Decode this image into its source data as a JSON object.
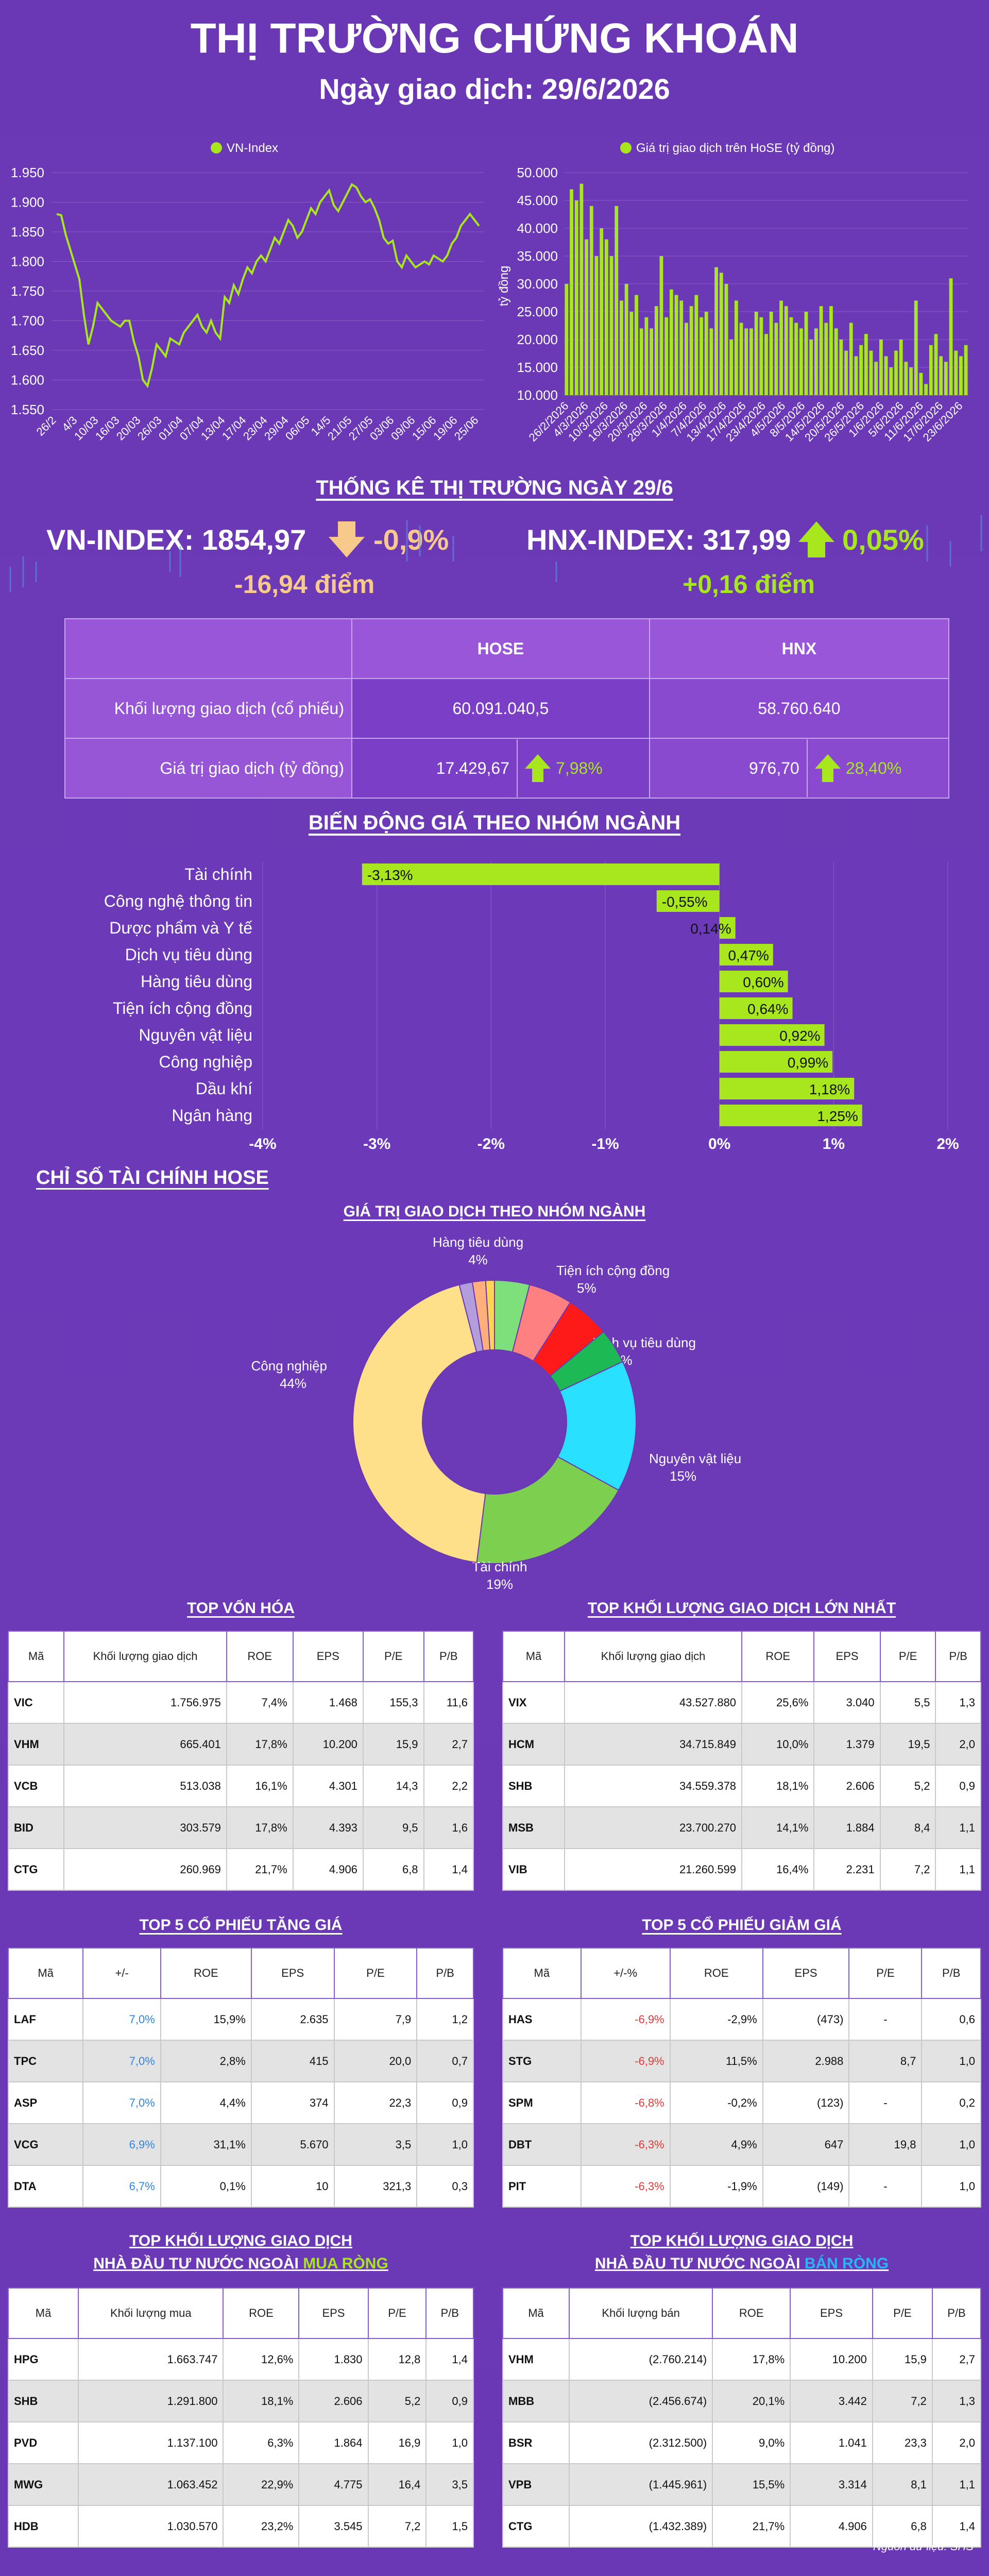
{
  "header": {
    "title": "THỊ TRƯỜNG CHỨNG KHOÁN",
    "subtitle": "Ngày giao dịch: 29/6/2026"
  },
  "colors": {
    "accent_green": "#a8e61d",
    "orange": "#f7c98a",
    "red": "#e53935",
    "blue": "#2e86e6"
  },
  "chart_data": [
    {
      "type": "line",
      "legend": "VN-Index",
      "ylim": [
        1550,
        1950
      ],
      "yticks": [
        "1.550",
        "1.600",
        "1.650",
        "1.700",
        "1.750",
        "1.800",
        "1.850",
        "1.900",
        "1.950"
      ],
      "xtick_labels": [
        "26/2",
        "4/3",
        "10/03",
        "16/03",
        "20/03",
        "26/03",
        "01/04",
        "07/04",
        "13/04",
        "17/04",
        "23/04",
        "29/04",
        "06/05",
        "14/5",
        "21/05",
        "27/05",
        "03/06",
        "09/06",
        "15/06",
        "19/06",
        "25/06"
      ],
      "values": [
        1880,
        1878,
        1845,
        1820,
        1795,
        1770,
        1710,
        1660,
        1690,
        1730,
        1720,
        1710,
        1700,
        1695,
        1690,
        1700,
        1700,
        1665,
        1640,
        1600,
        1590,
        1620,
        1660,
        1650,
        1640,
        1670,
        1665,
        1660,
        1680,
        1690,
        1700,
        1710,
        1690,
        1680,
        1700,
        1680,
        1670,
        1740,
        1730,
        1760,
        1745,
        1770,
        1790,
        1780,
        1800,
        1810,
        1800,
        1820,
        1840,
        1830,
        1850,
        1870,
        1860,
        1840,
        1850,
        1870,
        1890,
        1880,
        1900,
        1910,
        1920,
        1895,
        1885,
        1900,
        1915,
        1930,
        1925,
        1910,
        1900,
        1905,
        1890,
        1870,
        1840,
        1830,
        1835,
        1800,
        1790,
        1810,
        1800,
        1790,
        1795,
        1800,
        1795,
        1810,
        1805,
        1800,
        1810,
        1830,
        1840,
        1860,
        1870,
        1880,
        1870,
        1860
      ]
    },
    {
      "type": "bar",
      "legend": "Giá trị giao dịch trên HoSE (tỷ đồng)",
      "ylabel": "tỷ đồng",
      "ylim": [
        10000,
        50000
      ],
      "yticks": [
        "10.000",
        "15.000",
        "20.000",
        "25.000",
        "30.000",
        "35.000",
        "40.000",
        "45.000",
        "50.000"
      ],
      "xtick_labels": [
        "26/2/2026",
        "4/3/2026",
        "10/3/2026",
        "16/3/2026",
        "20/3/2026",
        "26/3/2026",
        "1/4/2026",
        "7/4/2026",
        "13/4/2026",
        "17/4/2026",
        "23/4/2026",
        "4/5/2026",
        "8/5/2026",
        "14/5/2026",
        "20/5/2026",
        "26/5/2026",
        "1/6/2026",
        "5/6/2026",
        "11/6/2026",
        "17/6/2026",
        "23/6/2026"
      ],
      "values": [
        30000,
        47000,
        45000,
        48000,
        38000,
        44000,
        35000,
        40000,
        38000,
        35000,
        44000,
        27000,
        30000,
        25000,
        28000,
        22000,
        24000,
        22000,
        26000,
        35000,
        24000,
        29000,
        28000,
        27000,
        23000,
        26000,
        28000,
        24000,
        25000,
        22000,
        33000,
        32000,
        30000,
        20000,
        27000,
        23000,
        22000,
        22000,
        25000,
        24000,
        21000,
        25000,
        23000,
        27000,
        26000,
        24000,
        23000,
        22000,
        25000,
        20000,
        22000,
        26000,
        23000,
        26000,
        22000,
        20000,
        18000,
        23000,
        17000,
        19000,
        21000,
        18000,
        16000,
        20000,
        17000,
        15000,
        18000,
        20000,
        16000,
        15000,
        27000,
        14000,
        12000,
        19000,
        21000,
        17000,
        16000,
        31000,
        18000,
        17000,
        19000
      ]
    },
    {
      "type": "bar",
      "orientation": "horizontal",
      "title": "BIẾN ĐỘNG GIÁ THEO NHÓM NGÀNH",
      "categories": [
        "Tài chính",
        "Công nghệ thông tin",
        "Dược phẩm và Y tế",
        "Dịch vụ tiêu dùng",
        "Hàng tiêu dùng",
        "Tiện ích cộng đồng",
        "Nguyên vật liệu",
        "Công nghiệp",
        "Dầu khí",
        "Ngân hàng"
      ],
      "values": [
        -3.13,
        -0.55,
        0.14,
        0.47,
        0.6,
        0.64,
        0.92,
        0.99,
        1.18,
        1.25
      ],
      "value_labels": [
        "-3,13%",
        "-0,55%",
        "0,14%",
        "0,47%",
        "0,60%",
        "0,64%",
        "0,92%",
        "0,99%",
        "1,18%",
        "1,25%"
      ],
      "xlim": [
        -4,
        2
      ],
      "xtick_labels": [
        "-4%",
        "-3%",
        "-2%",
        "-1%",
        "0%",
        "1%",
        "2%"
      ]
    },
    {
      "type": "pie",
      "title": "GIÁ TRỊ GIAO DỊCH THEO NHÓM NGÀNH",
      "slices": [
        {
          "label": "Hàng tiêu dùng",
          "pct": "4%",
          "value": 4,
          "color": "#7ee07a",
          "show": true
        },
        {
          "label": "Tiện ích cộng đồng",
          "pct": "5%",
          "value": 5,
          "color": "#ff8080",
          "show": true
        },
        {
          "label": "Dịch vụ tiêu dùng",
          "pct": "5%",
          "value": 5,
          "color": "#ff1a1a",
          "show": true
        },
        {
          "label": "",
          "pct": "",
          "value": 4,
          "color": "#1db954",
          "show": false
        },
        {
          "label": "Nguyên vật liệu",
          "pct": "15%",
          "value": 15,
          "color": "#29e0ff",
          "show": true
        },
        {
          "label": "Tài chính",
          "pct": "19%",
          "value": 19,
          "color": "#7ccf4f",
          "show": true
        },
        {
          "label": "Công nghiệp",
          "pct": "44%",
          "value": 44,
          "color": "#ffe08a",
          "show": true
        },
        {
          "label": "",
          "pct": "",
          "value": 1.5,
          "color": "#b39ddb",
          "show": false
        },
        {
          "label": "",
          "pct": "",
          "value": 1.5,
          "color": "#ffb07a",
          "show": false
        },
        {
          "label": "",
          "pct": "",
          "value": 1,
          "color": "#ffd54f",
          "show": false
        }
      ]
    }
  ],
  "stats": {
    "title": "THỐNG KÊ THỊ TRƯỜNG NGÀY 29/6",
    "vn_index": "VN-INDEX: 1854,97",
    "vn_change_pct": "-0,9%",
    "vn_change_pts": "-16,94 điểm",
    "hnx_index": "HNX-INDEX: 317,99",
    "hnx_change_pct": "0,05%",
    "hnx_change_pts": "+0,16 điểm",
    "col_hose": "HOSE",
    "col_hnx": "HNX",
    "row1_label": "Khối lượng giao dịch (cổ phiếu)",
    "row1_hose": "60.091.040,5",
    "row1_hnx": "58.760.640",
    "row2_label": "Giá trị giao dịch (tỷ đồng)",
    "row2_hose": "17.429,67",
    "row2_hose_pct": "7,98%",
    "row2_hnx": "976,70",
    "row2_hnx_pct": "28,40%"
  },
  "fin_title": "CHỈ SỐ TÀI CHÍNH HOSE",
  "tables": {
    "top_cap": {
      "title": "TOP VỐN HÓA",
      "headers": [
        "Mã",
        "Khối lượng giao dịch",
        "ROE",
        "EPS",
        "P/E",
        "P/B"
      ],
      "rows": [
        [
          "VIC",
          "1.756.975",
          "7,4%",
          "1.468",
          "155,3",
          "11,6"
        ],
        [
          "VHM",
          "665.401",
          "17,8%",
          "10.200",
          "15,9",
          "2,7"
        ],
        [
          "VCB",
          "513.038",
          "16,1%",
          "4.301",
          "14,3",
          "2,2"
        ],
        [
          "BID",
          "303.579",
          "17,8%",
          "4.393",
          "9,5",
          "1,6"
        ],
        [
          "CTG",
          "260.969",
          "21,7%",
          "4.906",
          "6,8",
          "1,4"
        ]
      ]
    },
    "top_volume": {
      "title": "TOP KHỐI LƯỢNG GIAO DỊCH LỚN NHẤT",
      "headers": [
        "Mã",
        "Khối lượng giao dịch",
        "ROE",
        "EPS",
        "P/E",
        "P/B"
      ],
      "rows": [
        [
          "VIX",
          "43.527.880",
          "25,6%",
          "3.040",
          "5,5",
          "1,3"
        ],
        [
          "HCM",
          "34.715.849",
          "10,0%",
          "1.379",
          "19,5",
          "2,0"
        ],
        [
          "SHB",
          "34.559.378",
          "18,1%",
          "2.606",
          "5,2",
          "0,9"
        ],
        [
          "MSB",
          "23.700.270",
          "14,1%",
          "1.884",
          "8,4",
          "1,1"
        ],
        [
          "VIB",
          "21.260.599",
          "16,4%",
          "2.231",
          "7,2",
          "1,1"
        ]
      ]
    },
    "top_gain": {
      "title": "TOP 5 CỔ PHIẾU TĂNG GIÁ",
      "headers": [
        "Mã",
        "+/-",
        "ROE",
        "EPS",
        "P/E",
        "P/B"
      ],
      "rows": [
        [
          "LAF",
          "7,0%",
          "15,9%",
          "2.635",
          "7,9",
          "1,2"
        ],
        [
          "TPC",
          "7,0%",
          "2,8%",
          "415",
          "20,0",
          "0,7"
        ],
        [
          "ASP",
          "7,0%",
          "4,4%",
          "374",
          "22,3",
          "0,9"
        ],
        [
          "VCG",
          "6,9%",
          "31,1%",
          "5.670",
          "3,5",
          "1,0"
        ],
        [
          "DTA",
          "6,7%",
          "0,1%",
          "10",
          "321,3",
          "0,3"
        ]
      ]
    },
    "top_loss": {
      "title": "TOP 5 CỔ PHIẾU GIẢM GIÁ",
      "headers": [
        "Mã",
        "+/-%",
        "ROE",
        "EPS",
        "P/E",
        "P/B"
      ],
      "rows": [
        [
          "HAS",
          "-6,9%",
          "-2,9%",
          "(473)",
          "-",
          "0,6"
        ],
        [
          "STG",
          "-6,9%",
          "11,5%",
          "2.988",
          "8,7",
          "1,0"
        ],
        [
          "SPM",
          "-6,8%",
          "-0,2%",
          "(123)",
          "-",
          "0,2"
        ],
        [
          "DBT",
          "-6,3%",
          "4,9%",
          "647",
          "19,8",
          "1,0"
        ],
        [
          "PIT",
          "-6,3%",
          "-1,9%",
          "(149)",
          "-",
          "1,0"
        ]
      ]
    },
    "foreign_buy": {
      "title1": "TOP KHỐI LƯỢNG GIAO DỊCH",
      "title2": "NHÀ ĐẦU TƯ NƯỚC NGOÀI",
      "title3": "MUA RÒNG",
      "headers": [
        "Mã",
        "Khối lượng mua",
        "ROE",
        "EPS",
        "P/E",
        "P/B"
      ],
      "rows": [
        [
          "HPG",
          "1.663.747",
          "12,6%",
          "1.830",
          "12,8",
          "1,4"
        ],
        [
          "SHB",
          "1.291.800",
          "18,1%",
          "2.606",
          "5,2",
          "0,9"
        ],
        [
          "PVD",
          "1.137.100",
          "6,3%",
          "1.864",
          "16,9",
          "1,0"
        ],
        [
          "MWG",
          "1.063.452",
          "22,9%",
          "4.775",
          "16,4",
          "3,5"
        ],
        [
          "HDB",
          "1.030.570",
          "23,2%",
          "3.545",
          "7,2",
          "1,5"
        ]
      ]
    },
    "foreign_sell": {
      "title1": "TOP KHỐI LƯỢNG GIAO DỊCH",
      "title2": "NHÀ ĐẦU TƯ NƯỚC NGOÀI",
      "title3": "BÁN RÒNG",
      "headers": [
        "Mã",
        "Khối lượng bán",
        "ROE",
        "EPS",
        "P/E",
        "P/B"
      ],
      "rows": [
        [
          "VHM",
          "(2.760.214)",
          "17,8%",
          "10.200",
          "15,9",
          "2,7"
        ],
        [
          "MBB",
          "(2.456.674)",
          "20,1%",
          "3.442",
          "7,2",
          "1,3"
        ],
        [
          "BSR",
          "(2.312.500)",
          "9,0%",
          "1.041",
          "23,3",
          "2,0"
        ],
        [
          "VPB",
          "(1.445.961)",
          "15,5%",
          "3.314",
          "8,1",
          "1,1"
        ],
        [
          "CTG",
          "(1.432.389)",
          "21,7%",
          "4.906",
          "6,8",
          "1,4"
        ]
      ]
    }
  },
  "source": "Nguồn dữ liệu: SHS"
}
